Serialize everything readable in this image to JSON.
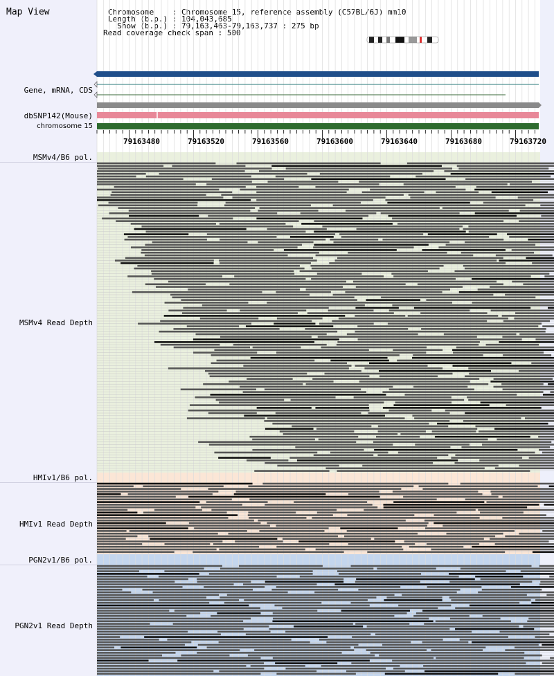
{
  "app": {
    "title": "Map View"
  },
  "info": {
    "chromosome_key": "Chromosome    : ",
    "chromosome_val": "Chromosome 15, reference assembly (C57BL/6J) mm10",
    "length_key": "Length (b.p.) : ",
    "length_val": "104,043,685",
    "show_key": "  Show (b.p.) : ",
    "show_val": "79,163,463-79,163,737 : 275 bp",
    "span_key": "Read coverage check span : ",
    "span_val": "500"
  },
  "tracks": {
    "gene": "Gene, mRNA, CDS",
    "snp": "dbSNP142(Mouse)",
    "chrom": "chromosome 15",
    "msm_pol": "MSMv4/B6 pol.",
    "msm_depth": "MSMv4 Read Depth",
    "hmi_pol": "HMIv1/B6 pol.",
    "hmi_depth": "HMIv1 Read Depth",
    "pgn_pol": "PGN2v1/B6 pol.",
    "pgn_depth": "PGN2v1 Read Depth"
  },
  "ruler": {
    "ticks": [
      "79163480",
      "79163520",
      "79163560",
      "79163600",
      "79163640",
      "79163680",
      "79163720"
    ]
  },
  "colors": {
    "gene_bar": "#1f4e8a",
    "snp_bar": "#e88898",
    "chrom_bar": "#2e6b2e",
    "msm_bg": "#eaf0de",
    "hmi_bg": "#fbe6d6",
    "pgn_bg": "#c4d6ee",
    "read": "#555555",
    "read_dark": "#111111"
  }
}
